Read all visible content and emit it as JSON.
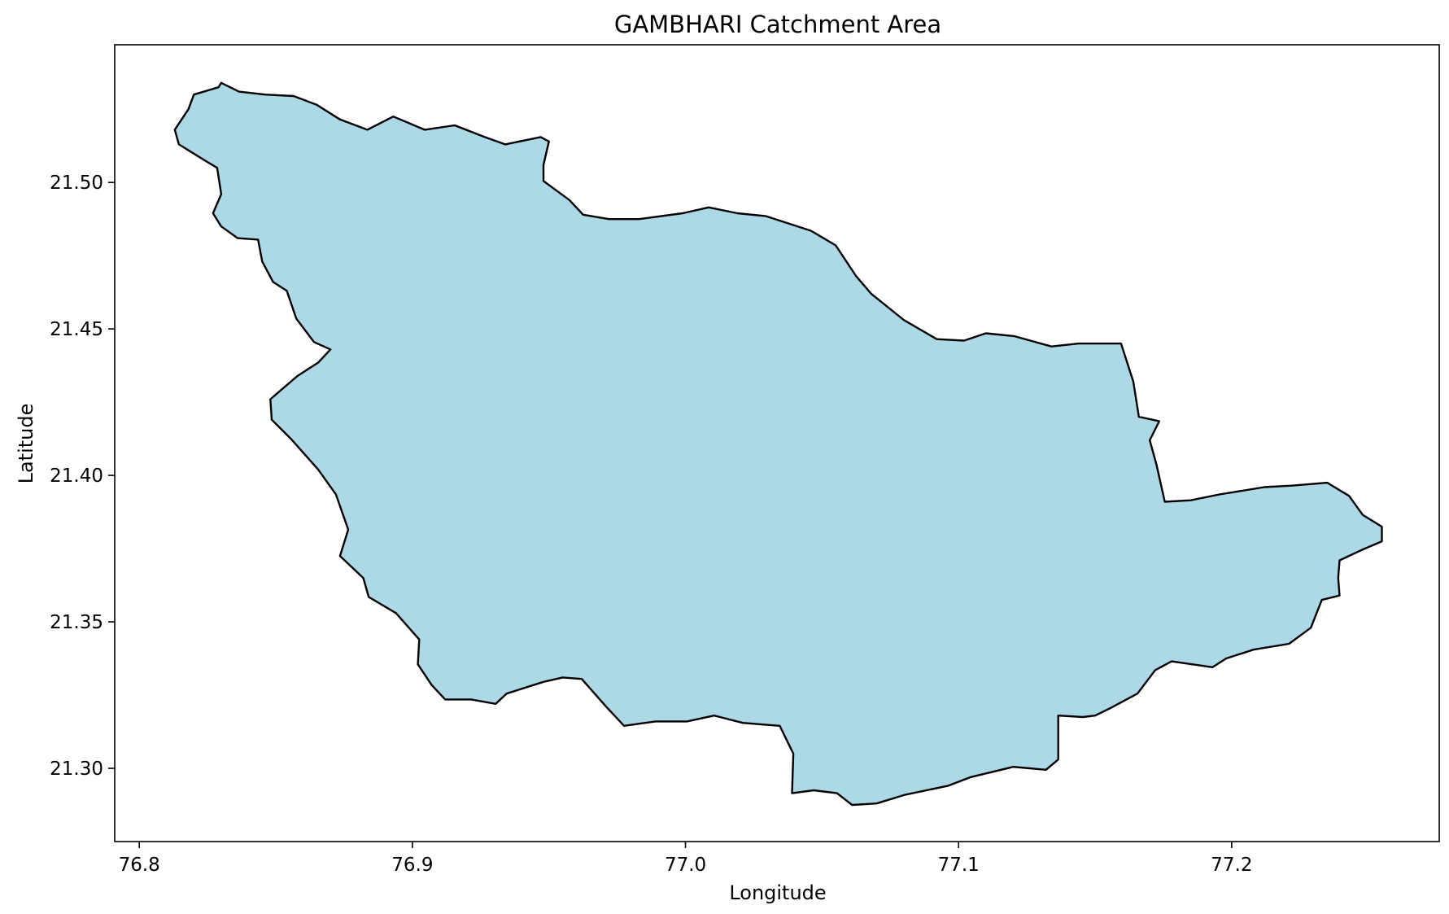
{
  "figure": {
    "title": "GAMBHARI Catchment Area",
    "xlabel": "Longitude",
    "ylabel": "Latitude"
  },
  "chart_data": {
    "type": "map",
    "title": "GAMBHARI Catchment Area",
    "xlabel": "Longitude",
    "ylabel": "Latitude",
    "xlim": [
      76.791,
      77.276
    ],
    "ylim": [
      21.275,
      21.547
    ],
    "x_ticks": [
      {
        "value": 76.8,
        "label": "76.8"
      },
      {
        "value": 76.9,
        "label": "76.9"
      },
      {
        "value": 77.0,
        "label": "77.0"
      },
      {
        "value": 77.1,
        "label": "77.1"
      },
      {
        "value": 77.2,
        "label": "77.2"
      }
    ],
    "y_ticks": [
      {
        "value": 21.3,
        "label": "21.30"
      },
      {
        "value": 21.35,
        "label": "21.35"
      },
      {
        "value": 21.4,
        "label": "21.40"
      },
      {
        "value": 21.45,
        "label": "21.45"
      },
      {
        "value": 21.5,
        "label": "21.50"
      }
    ],
    "grid": false,
    "fill_color": "#add8e6",
    "edge_color": "#000000",
    "boundary": [
      [
        76.83,
        21.534
      ],
      [
        76.8365,
        21.531
      ],
      [
        76.846,
        21.53
      ],
      [
        76.8565,
        21.5295
      ],
      [
        76.865,
        21.5265
      ],
      [
        76.8735,
        21.5215
      ],
      [
        76.8835,
        21.518
      ],
      [
        76.893,
        21.5225
      ],
      [
        76.9045,
        21.518
      ],
      [
        76.9155,
        21.5195
      ],
      [
        76.9265,
        21.5155
      ],
      [
        76.934,
        21.513
      ],
      [
        76.947,
        21.5155
      ],
      [
        76.95,
        21.514
      ],
      [
        76.948,
        21.506
      ],
      [
        76.948,
        21.5005
      ],
      [
        76.9575,
        21.494
      ],
      [
        76.9625,
        21.489
      ],
      [
        76.972,
        21.4875
      ],
      [
        76.983,
        21.4875
      ],
      [
        76.999,
        21.4895
      ],
      [
        77.0085,
        21.4915
      ],
      [
        77.019,
        21.4895
      ],
      [
        77.0295,
        21.4885
      ],
      [
        77.046,
        21.4835
      ],
      [
        77.055,
        21.4785
      ],
      [
        77.0625,
        21.468
      ],
      [
        77.068,
        21.462
      ],
      [
        77.08,
        21.453
      ],
      [
        77.092,
        21.4465
      ],
      [
        77.102,
        21.446
      ],
      [
        77.11,
        21.4485
      ],
      [
        77.1205,
        21.4475
      ],
      [
        77.134,
        21.444
      ],
      [
        77.144,
        21.445
      ],
      [
        77.1595,
        21.445
      ],
      [
        77.164,
        21.432
      ],
      [
        77.166,
        21.42
      ],
      [
        77.1735,
        21.4185
      ],
      [
        77.17,
        21.412
      ],
      [
        77.1725,
        21.4035
      ],
      [
        77.1755,
        21.391
      ],
      [
        77.185,
        21.3915
      ],
      [
        77.1955,
        21.3935
      ],
      [
        77.212,
        21.396
      ],
      [
        77.222,
        21.3965
      ],
      [
        77.235,
        21.3975
      ],
      [
        77.243,
        21.393
      ],
      [
        77.248,
        21.3865
      ],
      [
        77.255,
        21.3825
      ],
      [
        77.255,
        21.3775
      ],
      [
        77.2475,
        21.3745
      ],
      [
        77.2395,
        21.371
      ],
      [
        77.239,
        21.365
      ],
      [
        77.2395,
        21.359
      ],
      [
        77.233,
        21.3575
      ],
      [
        77.229,
        21.348
      ],
      [
        77.221,
        21.3425
      ],
      [
        77.208,
        21.3405
      ],
      [
        77.198,
        21.3375
      ],
      [
        77.193,
        21.3345
      ],
      [
        77.178,
        21.3365
      ],
      [
        77.172,
        21.3335
      ],
      [
        77.1655,
        21.3255
      ],
      [
        77.1555,
        21.3205
      ],
      [
        77.15,
        21.318
      ],
      [
        77.1455,
        21.3175
      ],
      [
        77.1365,
        21.318
      ],
      [
        77.1365,
        21.303
      ],
      [
        77.132,
        21.2995
      ],
      [
        77.12,
        21.3005
      ],
      [
        77.1045,
        21.297
      ],
      [
        77.096,
        21.294
      ],
      [
        77.0805,
        21.291
      ],
      [
        77.07,
        21.288
      ],
      [
        77.061,
        21.2875
      ],
      [
        77.0555,
        21.2915
      ],
      [
        77.047,
        21.2925
      ],
      [
        77.039,
        21.2915
      ],
      [
        77.0395,
        21.305
      ],
      [
        77.0345,
        21.3145
      ],
      [
        77.021,
        21.3155
      ],
      [
        77.0105,
        21.318
      ],
      [
        77.0005,
        21.316
      ],
      [
        76.989,
        21.316
      ],
      [
        76.9775,
        21.3145
      ],
      [
        76.971,
        21.321
      ],
      [
        76.962,
        21.3305
      ],
      [
        76.955,
        21.331
      ],
      [
        76.948,
        21.3295
      ],
      [
        76.9345,
        21.3255
      ],
      [
        76.9305,
        21.322
      ],
      [
        76.9215,
        21.3235
      ],
      [
        76.912,
        21.3235
      ],
      [
        76.907,
        21.3285
      ],
      [
        76.902,
        21.3355
      ],
      [
        76.9025,
        21.344
      ],
      [
        76.894,
        21.353
      ],
      [
        76.884,
        21.3585
      ],
      [
        76.882,
        21.365
      ],
      [
        76.8735,
        21.3725
      ],
      [
        76.8765,
        21.3815
      ],
      [
        76.872,
        21.3935
      ],
      [
        76.8655,
        21.402
      ],
      [
        76.8555,
        21.4125
      ],
      [
        76.8485,
        21.419
      ],
      [
        76.848,
        21.426
      ],
      [
        76.858,
        21.434
      ],
      [
        76.8655,
        21.4385
      ],
      [
        76.87,
        21.443
      ],
      [
        76.864,
        21.4455
      ],
      [
        76.8575,
        21.4535
      ],
      [
        76.854,
        21.463
      ],
      [
        76.849,
        21.466
      ],
      [
        76.845,
        21.473
      ],
      [
        76.8435,
        21.4805
      ],
      [
        76.836,
        21.481
      ],
      [
        76.83,
        21.485
      ],
      [
        76.827,
        21.4895
      ],
      [
        76.83,
        21.496
      ],
      [
        76.8285,
        21.505
      ],
      [
        76.824,
        21.5075
      ],
      [
        76.8145,
        21.513
      ],
      [
        76.813,
        21.518
      ],
      [
        76.818,
        21.525
      ],
      [
        76.82,
        21.53
      ],
      [
        76.829,
        21.5325
      ],
      [
        76.83,
        21.534
      ]
    ]
  }
}
